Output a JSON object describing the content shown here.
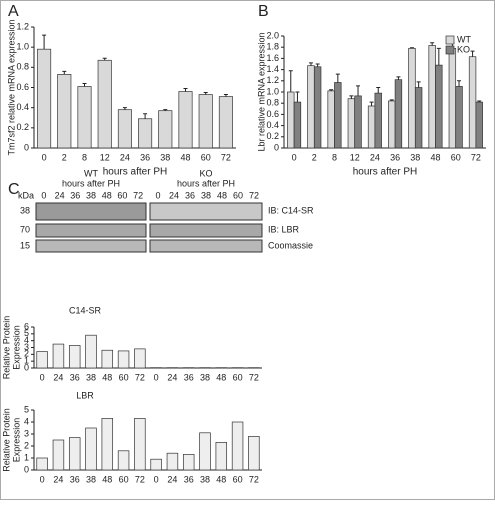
{
  "panel_labels": [
    "A",
    "B",
    "C"
  ],
  "chart_data": [
    {
      "type": "bar",
      "y_label": [
        "Tm7sf2 relative mRNA expression"
      ],
      "x_label": "hours after PH",
      "categories": [
        "0",
        "2",
        "8",
        "12",
        "24",
        "36",
        "38",
        "48",
        "60",
        "72"
      ],
      "values": [
        0.98,
        0.73,
        0.61,
        0.87,
        0.38,
        0.29,
        0.37,
        0.56,
        0.53,
        0.51
      ],
      "errors": [
        0.14,
        0.03,
        0.03,
        0.02,
        0.02,
        0.05,
        0.01,
        0.03,
        0.02,
        0.02
      ],
      "color": "#d9d9d9",
      "ylim": [
        0,
        1.2
      ],
      "yticks": [
        0,
        0.2,
        0.4,
        0.6,
        0.8,
        {
          "value": 1,
          "label": "1.0"
        },
        1.2
      ]
    },
    {
      "type": "bar",
      "y_label": [
        "Lbr relative mRNA expression"
      ],
      "x_label": "hours after PH",
      "categories": [
        "0",
        "2",
        "8",
        "12",
        "24",
        "36",
        "38",
        "48",
        "60",
        "72"
      ],
      "series": [
        {
          "name": "WT",
          "color": "#d9d9d9",
          "values": [
            1.0,
            1.47,
            1.02,
            0.88,
            0.75,
            0.84,
            1.78,
            1.83,
            1.78,
            1.63
          ],
          "errors": [
            0.38,
            0.05,
            0.02,
            0.05,
            0.07,
            0.02,
            0.01,
            0.05,
            0.1,
            0.1
          ]
        },
        {
          "name": "KO",
          "color": "#808080",
          "values": [
            0.82,
            1.45,
            1.17,
            0.93,
            0.98,
            1.22,
            1.08,
            1.48,
            1.1,
            0.82
          ],
          "errors": [
            0.18,
            0.05,
            0.15,
            0.18,
            0.1,
            0.05,
            0.1,
            0.3,
            0.1,
            0.02
          ]
        }
      ],
      "legend": "upper right",
      "ylim": [
        0,
        2
      ],
      "yticks": [
        0,
        0.2,
        0.4,
        0.6,
        0.8,
        {
          "value": 1,
          "label": "1.0"
        },
        1.2,
        1.4,
        1.6,
        1.8,
        {
          "value": 2,
          "label": "2.0"
        }
      ]
    },
    {
      "type": "bar",
      "title": "C14-SR",
      "y_label": [
        "Relative Protein",
        "Expression"
      ],
      "categories": [
        "0",
        "24",
        "36",
        "38",
        "48",
        "60",
        "72",
        "0",
        "24",
        "36",
        "38",
        "48",
        "60",
        "72"
      ],
      "values": [
        2.4,
        3.5,
        3.3,
        4.8,
        2.6,
        2.5,
        2.8,
        0.05,
        0.05,
        0.05,
        0.05,
        0.05,
        0.05,
        0.05
      ],
      "color": "#eeeeee",
      "ylim": [
        0,
        6
      ],
      "yticks": [
        0,
        1,
        2,
        3,
        4,
        5,
        6
      ]
    },
    {
      "type": "bar",
      "title": "LBR",
      "y_label": [
        "Relative Protein",
        "Expression"
      ],
      "categories": [
        "0",
        "24",
        "36",
        "38",
        "48",
        "60",
        "72",
        "0",
        "24",
        "36",
        "38",
        "48",
        "60",
        "72"
      ],
      "values": [
        1.0,
        2.5,
        2.7,
        3.5,
        4.3,
        1.6,
        4.3,
        0.9,
        1.4,
        1.3,
        3.1,
        2.3,
        4.0,
        2.8
      ],
      "color": "#eeeeee",
      "ylim": [
        0,
        5
      ],
      "yticks": [
        0,
        1,
        2,
        3,
        4,
        5
      ]
    }
  ],
  "blot": {
    "groups": [
      {
        "label": "WT",
        "sub": "hours after PH"
      },
      {
        "label": "KO",
        "sub": "hours after PH"
      }
    ],
    "lanes": [
      "0",
      "24",
      "36",
      "38",
      "48",
      "60",
      "72"
    ],
    "kda_label": "kDa",
    "kda": [
      "38",
      "70",
      "15"
    ],
    "rows": [
      "IB: C14-SR",
      "IB: LBR",
      "Coomassie"
    ]
  }
}
